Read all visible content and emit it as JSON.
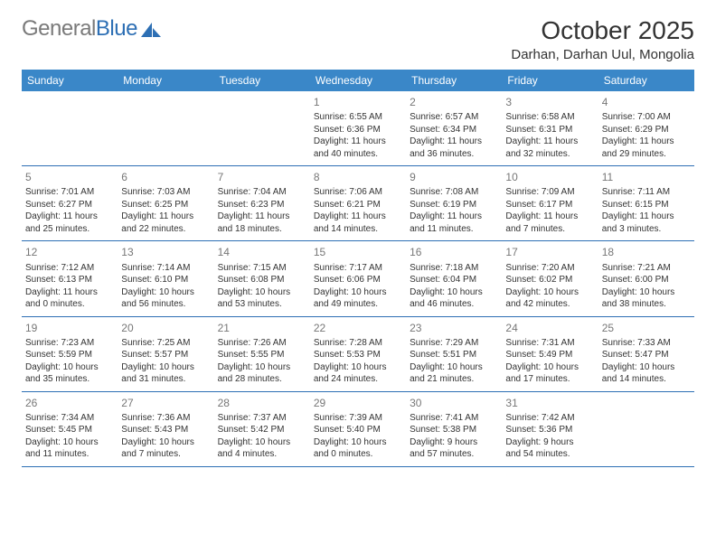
{
  "brand": {
    "part1": "General",
    "part2": "Blue"
  },
  "title": "October 2025",
  "location": "Darhan, Darhan Uul, Mongolia",
  "colors": {
    "header_bg": "#3a87c8",
    "header_text": "#ffffff",
    "border": "#2d6fb4",
    "brand_gray": "#7a7a7a",
    "brand_blue": "#2d6fb4",
    "body_text": "#333333",
    "daynum": "#777777",
    "background": "#ffffff"
  },
  "weekdays": [
    "Sunday",
    "Monday",
    "Tuesday",
    "Wednesday",
    "Thursday",
    "Friday",
    "Saturday"
  ],
  "weeks": [
    [
      null,
      null,
      null,
      {
        "n": "1",
        "sr": "Sunrise: 6:55 AM",
        "ss": "Sunset: 6:36 PM",
        "d1": "Daylight: 11 hours",
        "d2": "and 40 minutes."
      },
      {
        "n": "2",
        "sr": "Sunrise: 6:57 AM",
        "ss": "Sunset: 6:34 PM",
        "d1": "Daylight: 11 hours",
        "d2": "and 36 minutes."
      },
      {
        "n": "3",
        "sr": "Sunrise: 6:58 AM",
        "ss": "Sunset: 6:31 PM",
        "d1": "Daylight: 11 hours",
        "d2": "and 32 minutes."
      },
      {
        "n": "4",
        "sr": "Sunrise: 7:00 AM",
        "ss": "Sunset: 6:29 PM",
        "d1": "Daylight: 11 hours",
        "d2": "and 29 minutes."
      }
    ],
    [
      {
        "n": "5",
        "sr": "Sunrise: 7:01 AM",
        "ss": "Sunset: 6:27 PM",
        "d1": "Daylight: 11 hours",
        "d2": "and 25 minutes."
      },
      {
        "n": "6",
        "sr": "Sunrise: 7:03 AM",
        "ss": "Sunset: 6:25 PM",
        "d1": "Daylight: 11 hours",
        "d2": "and 22 minutes."
      },
      {
        "n": "7",
        "sr": "Sunrise: 7:04 AM",
        "ss": "Sunset: 6:23 PM",
        "d1": "Daylight: 11 hours",
        "d2": "and 18 minutes."
      },
      {
        "n": "8",
        "sr": "Sunrise: 7:06 AM",
        "ss": "Sunset: 6:21 PM",
        "d1": "Daylight: 11 hours",
        "d2": "and 14 minutes."
      },
      {
        "n": "9",
        "sr": "Sunrise: 7:08 AM",
        "ss": "Sunset: 6:19 PM",
        "d1": "Daylight: 11 hours",
        "d2": "and 11 minutes."
      },
      {
        "n": "10",
        "sr": "Sunrise: 7:09 AM",
        "ss": "Sunset: 6:17 PM",
        "d1": "Daylight: 11 hours",
        "d2": "and 7 minutes."
      },
      {
        "n": "11",
        "sr": "Sunrise: 7:11 AM",
        "ss": "Sunset: 6:15 PM",
        "d1": "Daylight: 11 hours",
        "d2": "and 3 minutes."
      }
    ],
    [
      {
        "n": "12",
        "sr": "Sunrise: 7:12 AM",
        "ss": "Sunset: 6:13 PM",
        "d1": "Daylight: 11 hours",
        "d2": "and 0 minutes."
      },
      {
        "n": "13",
        "sr": "Sunrise: 7:14 AM",
        "ss": "Sunset: 6:10 PM",
        "d1": "Daylight: 10 hours",
        "d2": "and 56 minutes."
      },
      {
        "n": "14",
        "sr": "Sunrise: 7:15 AM",
        "ss": "Sunset: 6:08 PM",
        "d1": "Daylight: 10 hours",
        "d2": "and 53 minutes."
      },
      {
        "n": "15",
        "sr": "Sunrise: 7:17 AM",
        "ss": "Sunset: 6:06 PM",
        "d1": "Daylight: 10 hours",
        "d2": "and 49 minutes."
      },
      {
        "n": "16",
        "sr": "Sunrise: 7:18 AM",
        "ss": "Sunset: 6:04 PM",
        "d1": "Daylight: 10 hours",
        "d2": "and 46 minutes."
      },
      {
        "n": "17",
        "sr": "Sunrise: 7:20 AM",
        "ss": "Sunset: 6:02 PM",
        "d1": "Daylight: 10 hours",
        "d2": "and 42 minutes."
      },
      {
        "n": "18",
        "sr": "Sunrise: 7:21 AM",
        "ss": "Sunset: 6:00 PM",
        "d1": "Daylight: 10 hours",
        "d2": "and 38 minutes."
      }
    ],
    [
      {
        "n": "19",
        "sr": "Sunrise: 7:23 AM",
        "ss": "Sunset: 5:59 PM",
        "d1": "Daylight: 10 hours",
        "d2": "and 35 minutes."
      },
      {
        "n": "20",
        "sr": "Sunrise: 7:25 AM",
        "ss": "Sunset: 5:57 PM",
        "d1": "Daylight: 10 hours",
        "d2": "and 31 minutes."
      },
      {
        "n": "21",
        "sr": "Sunrise: 7:26 AM",
        "ss": "Sunset: 5:55 PM",
        "d1": "Daylight: 10 hours",
        "d2": "and 28 minutes."
      },
      {
        "n": "22",
        "sr": "Sunrise: 7:28 AM",
        "ss": "Sunset: 5:53 PM",
        "d1": "Daylight: 10 hours",
        "d2": "and 24 minutes."
      },
      {
        "n": "23",
        "sr": "Sunrise: 7:29 AM",
        "ss": "Sunset: 5:51 PM",
        "d1": "Daylight: 10 hours",
        "d2": "and 21 minutes."
      },
      {
        "n": "24",
        "sr": "Sunrise: 7:31 AM",
        "ss": "Sunset: 5:49 PM",
        "d1": "Daylight: 10 hours",
        "d2": "and 17 minutes."
      },
      {
        "n": "25",
        "sr": "Sunrise: 7:33 AM",
        "ss": "Sunset: 5:47 PM",
        "d1": "Daylight: 10 hours",
        "d2": "and 14 minutes."
      }
    ],
    [
      {
        "n": "26",
        "sr": "Sunrise: 7:34 AM",
        "ss": "Sunset: 5:45 PM",
        "d1": "Daylight: 10 hours",
        "d2": "and 11 minutes."
      },
      {
        "n": "27",
        "sr": "Sunrise: 7:36 AM",
        "ss": "Sunset: 5:43 PM",
        "d1": "Daylight: 10 hours",
        "d2": "and 7 minutes."
      },
      {
        "n": "28",
        "sr": "Sunrise: 7:37 AM",
        "ss": "Sunset: 5:42 PM",
        "d1": "Daylight: 10 hours",
        "d2": "and 4 minutes."
      },
      {
        "n": "29",
        "sr": "Sunrise: 7:39 AM",
        "ss": "Sunset: 5:40 PM",
        "d1": "Daylight: 10 hours",
        "d2": "and 0 minutes."
      },
      {
        "n": "30",
        "sr": "Sunrise: 7:41 AM",
        "ss": "Sunset: 5:38 PM",
        "d1": "Daylight: 9 hours",
        "d2": "and 57 minutes."
      },
      {
        "n": "31",
        "sr": "Sunrise: 7:42 AM",
        "ss": "Sunset: 5:36 PM",
        "d1": "Daylight: 9 hours",
        "d2": "and 54 minutes."
      },
      null
    ]
  ]
}
